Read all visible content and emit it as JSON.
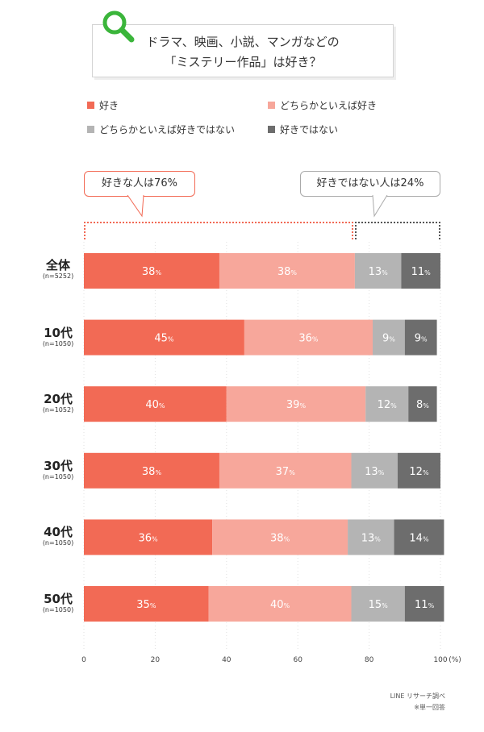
{
  "title": {
    "line1": "ドラマ、映画、小説、マンガなどの",
    "line2": "「ミステリー作品」は好き？"
  },
  "icons": {
    "title": "search-icon"
  },
  "callouts": {
    "like": "好きな人は76%",
    "dislike": "好きではない人は24%"
  },
  "footnotes": [
    "LINE リサーチ調べ",
    "※単一回答"
  ],
  "chart_data": {
    "type": "bar",
    "orientation": "horizontal",
    "stacked": true,
    "categories": [
      "全体",
      "10代",
      "20代",
      "30代",
      "40代",
      "50代"
    ],
    "sample_sizes": [
      "(n=5252)",
      "(n=1050)",
      "(n=1052)",
      "(n=1050)",
      "(n=1050)",
      "(n=1050)"
    ],
    "series": [
      {
        "name": "好き",
        "color": "#f26a55",
        "values": [
          38,
          45,
          40,
          38,
          36,
          35
        ]
      },
      {
        "name": "どちらかといえば好き",
        "color": "#f7a79b",
        "values": [
          38,
          36,
          39,
          37,
          38,
          40
        ]
      },
      {
        "name": "どちらかといえば好きではない",
        "color": "#b4b4b4",
        "values": [
          13,
          9,
          12,
          13,
          13,
          15
        ]
      },
      {
        "name": "好きではない",
        "color": "#6d6d6d",
        "values": [
          11,
          9,
          8,
          12,
          14,
          11
        ]
      }
    ],
    "value_suffix": "%",
    "xlim": [
      0,
      100
    ],
    "xticks": [
      0,
      20,
      40,
      60,
      80,
      100
    ],
    "x_unit": "(%)",
    "grid": true,
    "legend_position": "top"
  }
}
